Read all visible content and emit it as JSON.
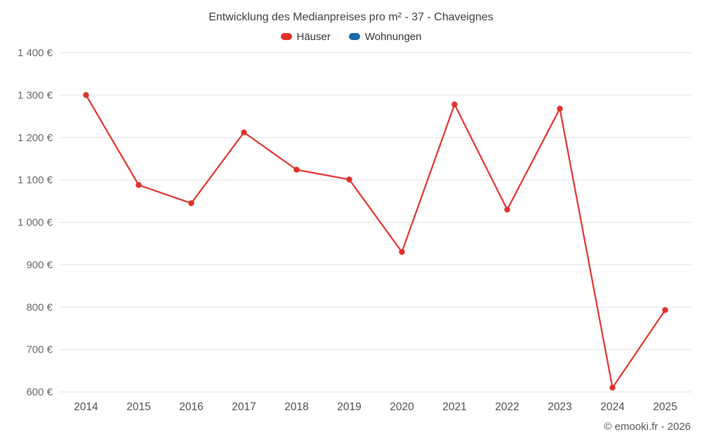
{
  "chart_data": {
    "type": "line",
    "title": "Entwicklung des Medianpreises pro m² - 37 - Chaveignes",
    "categories": [
      "2014",
      "2015",
      "2016",
      "2017",
      "2018",
      "2019",
      "2020",
      "2021",
      "2022",
      "2023",
      "2024",
      "2025"
    ],
    "series": [
      {
        "name": "Häuser",
        "color": "#e0312d",
        "values": [
          1300,
          1088,
          1045,
          1212,
          1124,
          1101,
          930,
          1278,
          1030,
          1268,
          610,
          793
        ]
      },
      {
        "name": "Wohnungen",
        "color": "#1769aa",
        "values": []
      }
    ],
    "xlabel": "",
    "ylabel": "",
    "ylim": [
      600,
      1400
    ],
    "ytick_step": 100,
    "ytick_suffix": " €",
    "grid": true,
    "legend_position": "top"
  },
  "footer": {
    "credit": "© emooki.fr - 2026"
  }
}
